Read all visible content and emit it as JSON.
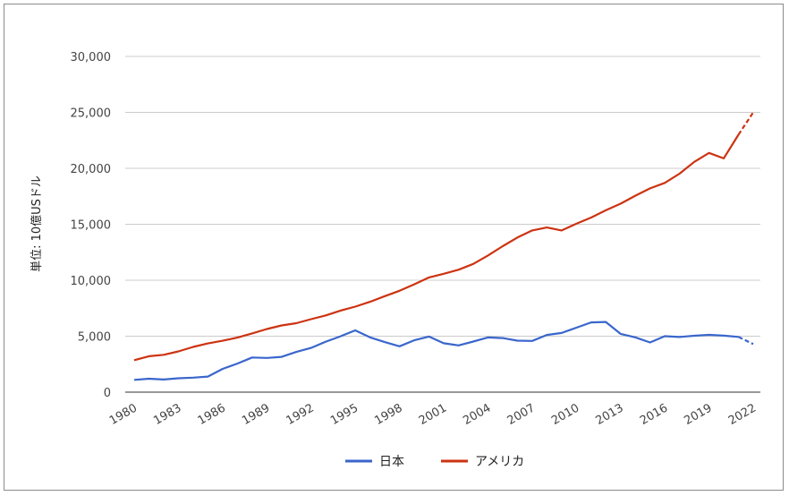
{
  "chart_data": {
    "type": "line",
    "ylabel": "単位: 10億USドル",
    "ylim": [
      0,
      30000
    ],
    "yticks": [
      0,
      5000,
      10000,
      15000,
      20000,
      25000,
      30000
    ],
    "ytick_labels": [
      "0",
      "5,000",
      "10,000",
      "15,000",
      "20,000",
      "25,000",
      "30,000"
    ],
    "xlim": [
      1980,
      2022
    ],
    "xticks": [
      1980,
      1983,
      1986,
      1989,
      1992,
      1995,
      1998,
      2001,
      2004,
      2007,
      2010,
      2013,
      2016,
      2019,
      2022
    ],
    "xtick_labels": [
      "1980",
      "1983",
      "1986",
      "1989",
      "1992",
      "1995",
      "1998",
      "2001",
      "2004",
      "2007",
      "2010",
      "2013",
      "2016",
      "2019",
      "2022"
    ],
    "grid": true,
    "legend_position": "bottom",
    "x": [
      1980,
      1981,
      1982,
      1983,
      1984,
      1985,
      1986,
      1987,
      1988,
      1989,
      1990,
      1991,
      1992,
      1993,
      1994,
      1995,
      1996,
      1997,
      1998,
      1999,
      2000,
      2001,
      2002,
      2003,
      2004,
      2005,
      2006,
      2007,
      2008,
      2009,
      2010,
      2011,
      2012,
      2013,
      2014,
      2015,
      2016,
      2017,
      2018,
      2019,
      2020,
      2021,
      2022
    ],
    "projected_from": 2021,
    "series": [
      {
        "name": "日本",
        "color": "#3a66cc",
        "values": [
          1100,
          1200,
          1130,
          1240,
          1300,
          1390,
          2080,
          2550,
          3100,
          3060,
          3150,
          3590,
          3950,
          4510,
          4990,
          5520,
          4900,
          4470,
          4100,
          4630,
          4970,
          4370,
          4180,
          4520,
          4890,
          4830,
          4600,
          4580,
          5110,
          5290,
          5760,
          6230,
          6270,
          5210,
          4900,
          4440,
          5000,
          4930,
          5040,
          5120,
          5050,
          4940,
          4300
        ]
      },
      {
        "name": "アメリカ",
        "color": "#cc3311",
        "values": [
          2860,
          3210,
          3340,
          3640,
          4040,
          4350,
          4590,
          4870,
          5250,
          5640,
          5960,
          6160,
          6520,
          6860,
          7290,
          7640,
          8070,
          8580,
          9060,
          9630,
          10250,
          10580,
          10940,
          11460,
          12210,
          13040,
          13820,
          14450,
          14710,
          14450,
          15050,
          15600,
          16250,
          16840,
          17550,
          18210,
          18700,
          19520,
          20580,
          21380,
          20890,
          23000,
          25000
        ]
      }
    ]
  }
}
